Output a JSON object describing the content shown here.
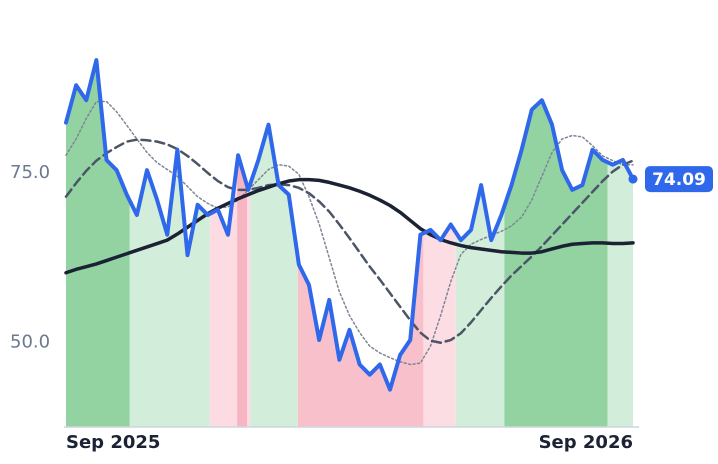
{
  "chart_data": {
    "type": "line",
    "x": [
      0,
      1,
      2,
      3,
      4,
      5,
      6,
      7,
      8,
      9,
      10,
      11,
      12,
      13,
      14,
      15,
      16,
      17,
      18,
      19,
      20,
      21,
      22,
      23,
      24,
      25,
      26,
      27,
      28,
      29,
      30,
      31,
      32,
      33,
      34,
      35,
      36,
      37,
      38,
      39,
      40,
      41,
      42,
      43,
      44,
      45,
      46,
      47,
      48,
      49,
      50,
      51,
      52,
      53,
      54,
      55,
      56
    ],
    "xlim": [
      0,
      56
    ],
    "xticks": [
      {
        "value": 0,
        "label": "Sep 2025"
      },
      {
        "value": 56,
        "label": "Sep 2026"
      }
    ],
    "ylim": [
      37.6,
      95
    ],
    "yticks": [
      {
        "value": 50,
        "label": "50.0"
      },
      {
        "value": 75,
        "label": "75.0"
      }
    ],
    "series": [
      {
        "color": "#2f68ea",
        "style": "solid",
        "width": 4,
        "values": [
          82.4,
          87.9,
          85.7,
          91.6,
          76.9,
          75.4,
          71.8,
          68.8,
          75.4,
          71.0,
          65.9,
          78.4,
          62.9,
          70.3,
          68.8,
          69.6,
          65.9,
          77.6,
          72.5,
          76.9,
          82.1,
          73.2,
          71.8,
          61.5,
          58.5,
          50.4,
          56.3,
          47.5,
          51.9,
          46.8,
          45.3,
          46.8,
          43.1,
          48.2,
          50.4,
          65.9,
          66.6,
          65.1,
          67.4,
          65.1,
          66.6,
          73.2,
          65.1,
          68.8,
          73.2,
          78.4,
          84.3,
          85.7,
          82.1,
          75.4,
          72.5,
          73.2,
          78.4,
          76.9,
          76.2,
          76.9,
          74.09
        ]
      },
      {
        "color": "#1b2233",
        "style": "solid",
        "width": 3.5,
        "values": [
          60.3,
          60.8,
          61.2,
          61.6,
          62.1,
          62.6,
          63.1,
          63.6,
          64.1,
          64.6,
          65.1,
          66.0,
          67.0,
          68.0,
          69.0,
          69.8,
          70.5,
          71.2,
          71.8,
          72.4,
          72.9,
          73.4,
          73.8,
          74.0,
          74.0,
          73.9,
          73.6,
          73.2,
          72.8,
          72.3,
          71.7,
          71.0,
          70.2,
          69.2,
          68.0,
          66.8,
          65.9,
          65.2,
          64.7,
          64.3,
          64.0,
          63.8,
          63.6,
          63.4,
          63.3,
          63.2,
          63.2,
          63.4,
          63.8,
          64.2,
          64.5,
          64.6,
          64.7,
          64.7,
          64.6,
          64.6,
          64.7
        ]
      },
      {
        "color": "#4b5566",
        "style": "dashed",
        "width": 2.5,
        "values": [
          71.5,
          73.5,
          75.3,
          76.8,
          77.9,
          78.8,
          79.6,
          79.9,
          79.8,
          79.6,
          79.2,
          78.5,
          77.5,
          76.3,
          75.0,
          73.8,
          72.9,
          72.5,
          72.5,
          72.8,
          73.2,
          73.3,
          73.2,
          72.8,
          72.0,
          70.8,
          69.3,
          67.4,
          65.4,
          63.3,
          61.2,
          59.3,
          57.3,
          55.3,
          53.3,
          51.5,
          50.3,
          50.0,
          50.4,
          51.4,
          53.0,
          54.8,
          56.6,
          58.3,
          59.9,
          61.3,
          62.7,
          64.2,
          65.8,
          67.4,
          69.0,
          70.6,
          72.2,
          73.8,
          75.2,
          76.2,
          76.8
        ]
      },
      {
        "color": "#7d8696",
        "style": "dotted",
        "width": 1.5,
        "values": [
          77.6,
          80,
          83,
          85.5,
          85.5,
          84,
          82,
          80,
          78,
          76.5,
          75.5,
          74.5,
          73,
          71.5,
          70.5,
          69.8,
          70,
          71,
          72.5,
          74,
          75.5,
          76.2,
          76,
          74.8,
          71.5,
          67.5,
          62.5,
          57.5,
          54,
          51.5,
          49.5,
          48.5,
          47.8,
          47.2,
          46.8,
          47,
          49.5,
          54,
          59,
          63,
          64.5,
          65.2,
          65.8,
          66.4,
          67.2,
          68.5,
          71,
          74.5,
          78,
          80,
          80.5,
          80.3,
          79,
          77.5,
          76.8,
          76.2,
          76.2
        ]
      }
    ],
    "bands": [
      {
        "from": 0,
        "to": 6.3,
        "color": "#93d3a2"
      },
      {
        "from": 6.3,
        "to": 14.2,
        "color": "#d2eedb"
      },
      {
        "from": 14.2,
        "to": 16.9,
        "color": "#fcdbe2"
      },
      {
        "from": 16.9,
        "to": 17.9,
        "color": "#f7b5c2"
      },
      {
        "from": 17.9,
        "to": 18.2,
        "color": "#fcdbe2"
      },
      {
        "from": 18.2,
        "to": 22.9,
        "color": "#d2eedb"
      },
      {
        "from": 22.9,
        "to": 35.3,
        "color": "#f8c0cb"
      },
      {
        "from": 35.3,
        "to": 38.5,
        "color": "#fddde4"
      },
      {
        "from": 38.5,
        "to": 43.3,
        "color": "#d2eedb"
      },
      {
        "from": 43.3,
        "to": 53.5,
        "color": "#93d3a2"
      },
      {
        "from": 53.5,
        "to": 56,
        "color": "#d2eedb"
      }
    ]
  }
}
